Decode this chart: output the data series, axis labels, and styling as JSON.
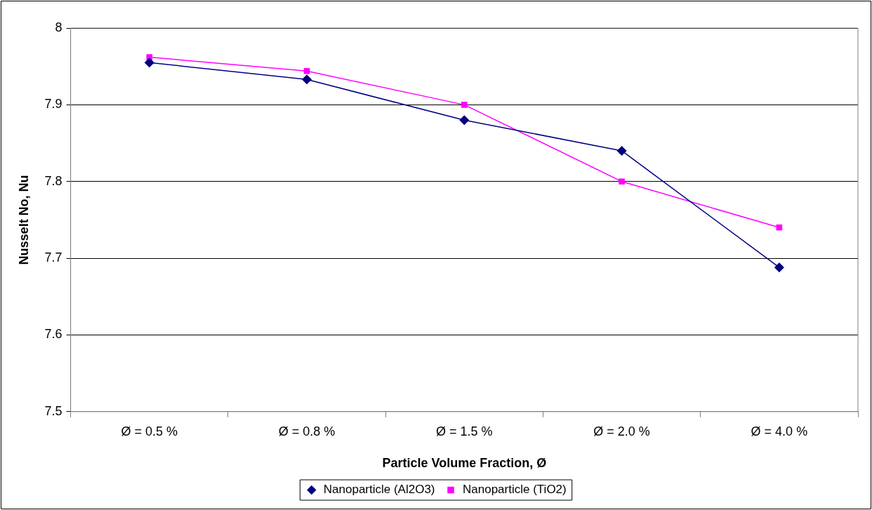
{
  "chart_data": {
    "type": "line",
    "xlabel": "Particle Volume Fraction, Ø",
    "ylabel": "Nusselt No, Nu",
    "categories": [
      "Ø = 0.5 %",
      "Ø = 0.8 %",
      "Ø = 1.5 %",
      "Ø = 2.0 %",
      "Ø = 4.0 %"
    ],
    "series": [
      {
        "name": "Nanoparticle (Al2O3)",
        "color": "#000080",
        "marker": "diamond",
        "values": [
          7.955,
          7.933,
          7.88,
          7.84,
          7.688
        ]
      },
      {
        "name": "Nanoparticle (TiO2)",
        "color": "#ff00ff",
        "marker": "square",
        "values": [
          7.962,
          7.944,
          7.9,
          7.8,
          7.74
        ]
      }
    ],
    "ylim": [
      7.5,
      8
    ],
    "yticks": [
      7.5,
      7.6,
      7.7,
      7.8,
      7.9,
      8
    ],
    "grid": "y",
    "legend": "bottom",
    "line_style": "solid"
  }
}
